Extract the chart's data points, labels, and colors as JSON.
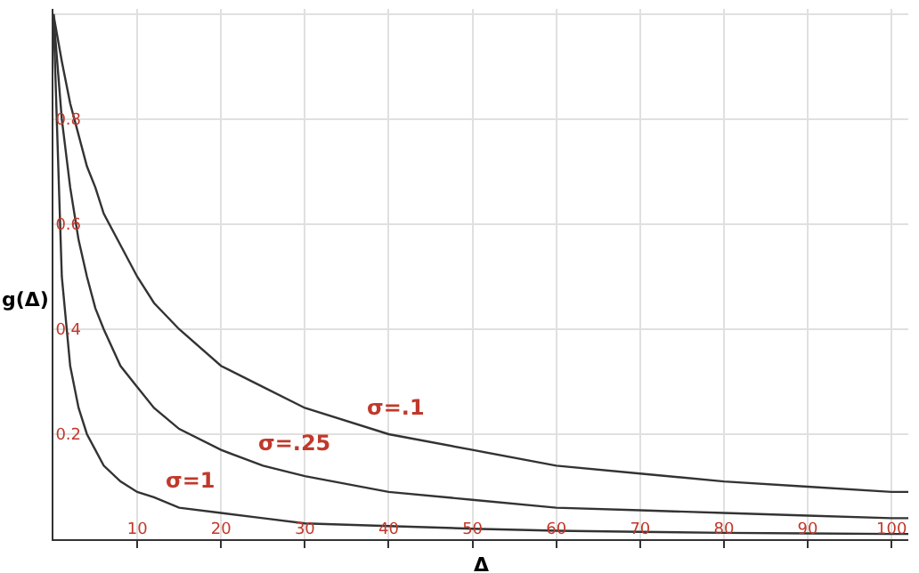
{
  "chart_data": {
    "type": "line",
    "xlabel": "Δ",
    "ylabel": "g(Δ)",
    "x": [
      0,
      1,
      2,
      3,
      4,
      5,
      6,
      8,
      10,
      12,
      15,
      20,
      25,
      30,
      40,
      50,
      60,
      70,
      80,
      90,
      100,
      102
    ],
    "series": [
      {
        "name": "σ=.1",
        "color": "#333333",
        "values": [
          1,
          0.91,
          0.83,
          0.77,
          0.71,
          0.67,
          0.62,
          0.56,
          0.5,
          0.45,
          0.4,
          0.33,
          0.29,
          0.25,
          0.2,
          0.17,
          0.14,
          0.125,
          0.11,
          0.1,
          0.09,
          0.09
        ]
      },
      {
        "name": "σ=.25",
        "color": "#333333",
        "values": [
          1,
          0.8,
          0.67,
          0.57,
          0.5,
          0.44,
          0.4,
          0.33,
          0.29,
          0.25,
          0.21,
          0.17,
          0.14,
          0.12,
          0.09,
          0.075,
          0.06,
          0.055,
          0.05,
          0.045,
          0.04,
          0.04
        ]
      },
      {
        "name": "σ=1",
        "color": "#333333",
        "values": [
          1,
          0.5,
          0.33,
          0.25,
          0.2,
          0.17,
          0.14,
          0.11,
          0.09,
          0.08,
          0.06,
          0.05,
          0.04,
          0.03,
          0.025,
          0.02,
          0.016,
          0.014,
          0.012,
          0.011,
          0.01,
          0.01
        ]
      }
    ],
    "xlim": [
      0,
      102
    ],
    "xticks": [
      10,
      20,
      30,
      40,
      50,
      60,
      70,
      80,
      90,
      100
    ],
    "ylim": [
      0,
      1.01
    ],
    "yticks": [
      {
        "value": 0,
        "label": null
      },
      0.2,
      0.4,
      0.6,
      0.8,
      {
        "value": 1,
        "label": null
      }
    ],
    "grid": true,
    "legend": false,
    "marker": "none",
    "line_style": "solid"
  }
}
